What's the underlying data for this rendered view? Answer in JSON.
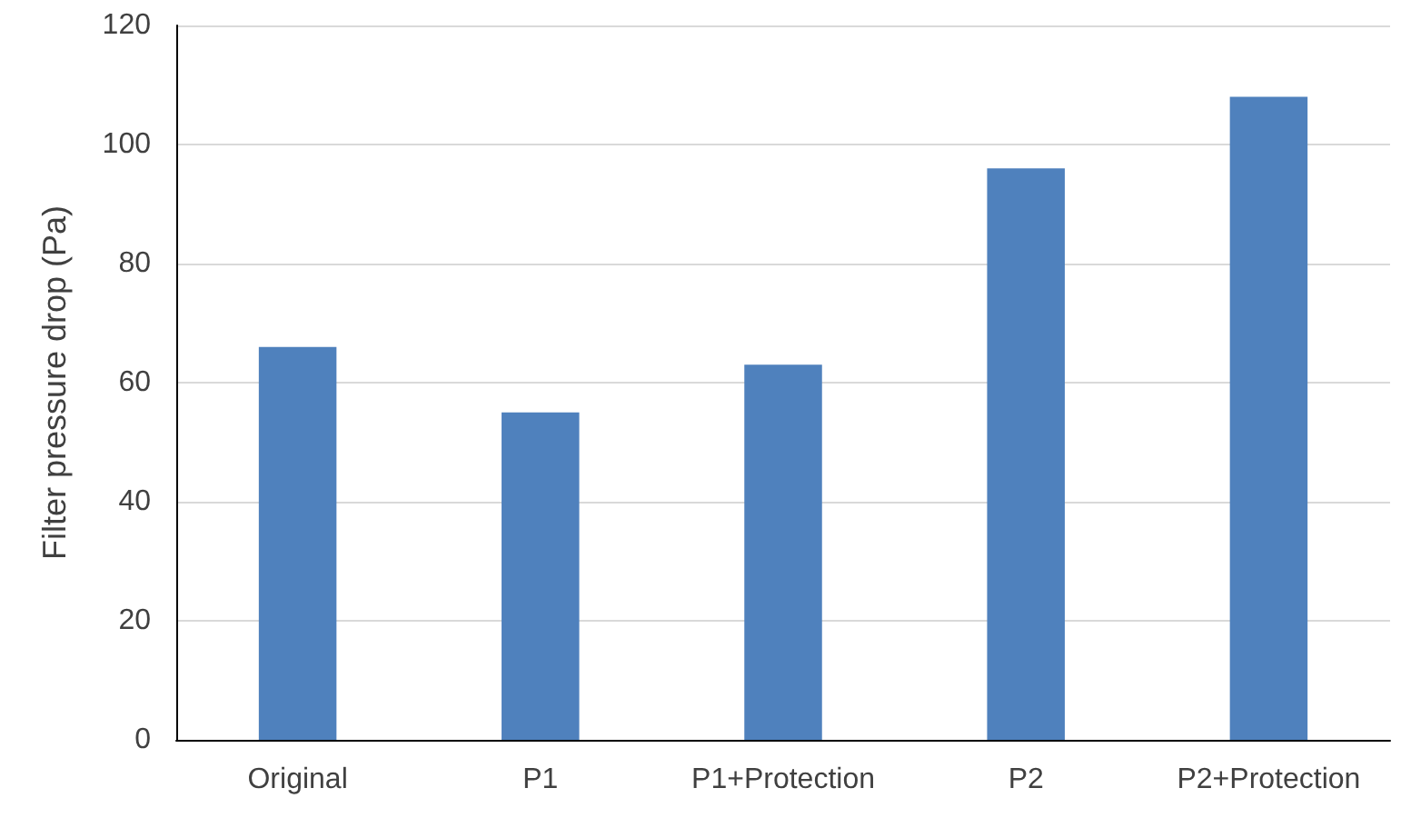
{
  "chart_data": {
    "type": "bar",
    "ylabel": "Filter pressure drop (Pa)",
    "categories": [
      "Original",
      "P1",
      "P1+Protection",
      "P2",
      "P2+Protection"
    ],
    "values": [
      66,
      55,
      63,
      96,
      108
    ],
    "color": "#4f81bd",
    "ylim": [
      0,
      120
    ],
    "yticks": [
      0,
      20,
      40,
      60,
      80,
      100,
      120
    ],
    "grid": "y"
  }
}
